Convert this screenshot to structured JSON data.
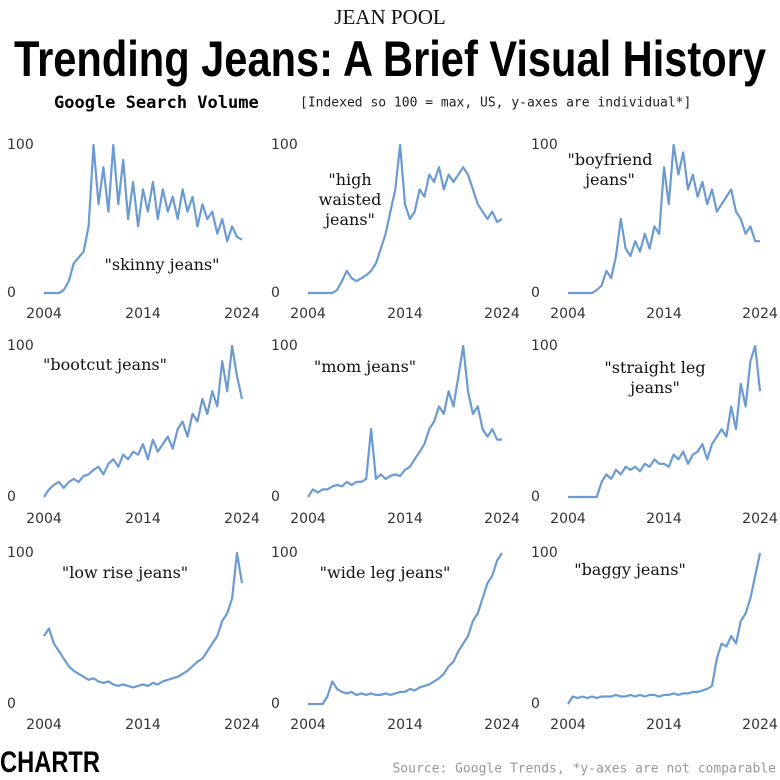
{
  "kicker": "JEAN POOL",
  "title": "Trending Jeans: A Brief Visual History",
  "subtitle_bold": "Google Search Volume",
  "subtitle": "[Indexed so 100 = max, US, y-axes are individual*]",
  "source": "Source: Google Trends, *y-axes are not comparable",
  "logo": "CHARTR",
  "chart_data": [
    {
      "type": "line",
      "title": "\"skinny jeans\"",
      "color": "#6b9bd2",
      "x": [
        2004,
        2004.5,
        2005,
        2005.5,
        2006,
        2006.5,
        2007,
        2007.5,
        2008,
        2008.5,
        2009,
        2009.5,
        2010,
        2010.5,
        2011,
        2011.5,
        2012,
        2012.5,
        2013,
        2013.5,
        2014,
        2014.5,
        2015,
        2015.5,
        2016,
        2016.5,
        2017,
        2017.5,
        2018,
        2018.5,
        2019,
        2019.5,
        2020,
        2020.5,
        2021,
        2021.5,
        2022,
        2022.5,
        2023,
        2023.5,
        2024
      ],
      "values": [
        0,
        0,
        0,
        0,
        2,
        8,
        20,
        24,
        28,
        45,
        100,
        60,
        85,
        55,
        100,
        60,
        90,
        50,
        75,
        45,
        70,
        55,
        75,
        50,
        70,
        55,
        65,
        50,
        70,
        55,
        65,
        45,
        60,
        50,
        55,
        40,
        50,
        35,
        45,
        38,
        36
      ],
      "xlim": [
        2004,
        2024
      ],
      "xticks": [
        2004,
        2014,
        2024
      ],
      "ylim": [
        0,
        100
      ],
      "yticks": [
        0,
        100
      ]
    },
    {
      "type": "line",
      "title": "\"high\nwaisted\njeans\"",
      "color": "#6b9bd2",
      "x": [
        2004,
        2004.5,
        2005,
        2005.5,
        2006,
        2006.5,
        2007,
        2007.5,
        2008,
        2008.5,
        2009,
        2009.5,
        2010,
        2010.5,
        2011,
        2011.5,
        2012,
        2012.5,
        2013,
        2013.5,
        2014,
        2014.5,
        2015,
        2015.5,
        2016,
        2016.5,
        2017,
        2017.5,
        2018,
        2018.5,
        2019,
        2019.5,
        2020,
        2020.5,
        2021,
        2021.5,
        2022,
        2022.5,
        2023,
        2023.5,
        2024
      ],
      "values": [
        0,
        0,
        0,
        0,
        0,
        0,
        2,
        8,
        15,
        10,
        8,
        10,
        12,
        15,
        20,
        30,
        40,
        55,
        70,
        100,
        60,
        50,
        55,
        70,
        65,
        80,
        75,
        85,
        70,
        80,
        75,
        80,
        85,
        80,
        70,
        60,
        55,
        50,
        55,
        48,
        50
      ],
      "xlim": [
        2004,
        2024
      ],
      "xticks": [
        2004,
        2014,
        2024
      ],
      "ylim": [
        0,
        100
      ],
      "yticks": [
        0,
        100
      ]
    },
    {
      "type": "line",
      "title": "\"boyfriend\njeans\"",
      "color": "#6b9bd2",
      "x": [
        2004,
        2004.5,
        2005,
        2005.5,
        2006,
        2006.5,
        2007,
        2007.5,
        2008,
        2008.5,
        2009,
        2009.5,
        2010,
        2010.5,
        2011,
        2011.5,
        2012,
        2012.5,
        2013,
        2013.5,
        2014,
        2014.5,
        2015,
        2015.5,
        2016,
        2016.5,
        2017,
        2017.5,
        2018,
        2018.5,
        2019,
        2019.5,
        2020,
        2020.5,
        2021,
        2021.5,
        2022,
        2022.5,
        2023,
        2023.5,
        2024
      ],
      "values": [
        0,
        0,
        0,
        0,
        0,
        0,
        2,
        5,
        15,
        10,
        25,
        50,
        30,
        25,
        35,
        28,
        40,
        30,
        45,
        40,
        85,
        60,
        100,
        80,
        95,
        70,
        80,
        65,
        75,
        60,
        70,
        55,
        60,
        65,
        70,
        55,
        50,
        40,
        45,
        35,
        35
      ],
      "xlim": [
        2004,
        2024
      ],
      "xticks": [
        2004,
        2014,
        2024
      ],
      "ylim": [
        0,
        100
      ],
      "yticks": [
        0,
        100
      ]
    },
    {
      "type": "line",
      "title": "\"bootcut jeans\"",
      "color": "#6b9bd2",
      "x": [
        2004,
        2004.5,
        2005,
        2005.5,
        2006,
        2006.5,
        2007,
        2007.5,
        2008,
        2008.5,
        2009,
        2009.5,
        2010,
        2010.5,
        2011,
        2011.5,
        2012,
        2012.5,
        2013,
        2013.5,
        2014,
        2014.5,
        2015,
        2015.5,
        2016,
        2016.5,
        2017,
        2017.5,
        2018,
        2018.5,
        2019,
        2019.5,
        2020,
        2020.5,
        2021,
        2021.5,
        2022,
        2022.5,
        2023,
        2023.5,
        2024
      ],
      "values": [
        0,
        5,
        8,
        10,
        6,
        10,
        12,
        10,
        14,
        15,
        18,
        20,
        15,
        22,
        25,
        20,
        28,
        25,
        30,
        28,
        35,
        25,
        38,
        30,
        35,
        40,
        32,
        45,
        50,
        40,
        55,
        50,
        65,
        55,
        70,
        60,
        90,
        70,
        100,
        80,
        65
      ],
      "xlim": [
        2004,
        2024
      ],
      "xticks": [
        2004,
        2014,
        2024
      ],
      "ylim": [
        0,
        100
      ],
      "yticks": [
        0,
        100
      ]
    },
    {
      "type": "line",
      "title": "\"mom jeans\"",
      "color": "#6b9bd2",
      "x": [
        2004,
        2004.5,
        2005,
        2005.5,
        2006,
        2006.5,
        2007,
        2007.5,
        2008,
        2008.5,
        2009,
        2009.5,
        2010,
        2010.5,
        2011,
        2011.5,
        2012,
        2012.5,
        2013,
        2013.5,
        2014,
        2014.5,
        2015,
        2015.5,
        2016,
        2016.5,
        2017,
        2017.5,
        2018,
        2018.5,
        2019,
        2019.5,
        2020,
        2020.5,
        2021,
        2021.5,
        2022,
        2022.5,
        2023,
        2023.5,
        2024
      ],
      "values": [
        0,
        5,
        3,
        5,
        5,
        7,
        8,
        7,
        10,
        8,
        10,
        10,
        12,
        45,
        12,
        15,
        12,
        14,
        15,
        14,
        18,
        20,
        25,
        30,
        35,
        45,
        50,
        60,
        55,
        70,
        60,
        80,
        100,
        70,
        55,
        60,
        45,
        40,
        45,
        38,
        38
      ],
      "xlim": [
        2004,
        2024
      ],
      "xticks": [
        2004,
        2014,
        2024
      ],
      "ylim": [
        0,
        100
      ],
      "yticks": [
        0,
        100
      ]
    },
    {
      "type": "line",
      "title": "\"straight leg\njeans\"",
      "color": "#6b9bd2",
      "x": [
        2004,
        2004.5,
        2005,
        2005.5,
        2006,
        2006.5,
        2007,
        2007.5,
        2008,
        2008.5,
        2009,
        2009.5,
        2010,
        2010.5,
        2011,
        2011.5,
        2012,
        2012.5,
        2013,
        2013.5,
        2014,
        2014.5,
        2015,
        2015.5,
        2016,
        2016.5,
        2017,
        2017.5,
        2018,
        2018.5,
        2019,
        2019.5,
        2020,
        2020.5,
        2021,
        2021.5,
        2022,
        2022.5,
        2023,
        2023.5,
        2024
      ],
      "values": [
        0,
        0,
        0,
        0,
        0,
        0,
        0,
        10,
        15,
        12,
        18,
        15,
        20,
        18,
        20,
        17,
        22,
        20,
        25,
        22,
        22,
        20,
        28,
        25,
        30,
        22,
        28,
        30,
        35,
        25,
        35,
        40,
        45,
        40,
        60,
        45,
        75,
        60,
        90,
        100,
        70
      ],
      "xlim": [
        2004,
        2024
      ],
      "xticks": [
        2004,
        2014,
        2024
      ],
      "ylim": [
        0,
        100
      ],
      "yticks": [
        0,
        100
      ]
    },
    {
      "type": "line",
      "title": "\"low rise jeans\"",
      "color": "#6b9bd2",
      "x": [
        2004,
        2004.5,
        2005,
        2005.5,
        2006,
        2006.5,
        2007,
        2007.5,
        2008,
        2008.5,
        2009,
        2009.5,
        2010,
        2010.5,
        2011,
        2011.5,
        2012,
        2012.5,
        2013,
        2013.5,
        2014,
        2014.5,
        2015,
        2015.5,
        2016,
        2016.5,
        2017,
        2017.5,
        2018,
        2018.5,
        2019,
        2019.5,
        2020,
        2020.5,
        2021,
        2021.5,
        2022,
        2022.5,
        2023,
        2023.5,
        2024
      ],
      "values": [
        45,
        50,
        40,
        35,
        30,
        25,
        22,
        20,
        18,
        16,
        17,
        15,
        14,
        15,
        13,
        12,
        13,
        12,
        11,
        12,
        13,
        12,
        14,
        13,
        15,
        16,
        17,
        18,
        20,
        22,
        25,
        28,
        30,
        35,
        40,
        45,
        55,
        60,
        70,
        100,
        80
      ],
      "xlim": [
        2004,
        2024
      ],
      "xticks": [
        2004,
        2014,
        2024
      ],
      "ylim": [
        0,
        100
      ],
      "yticks": [
        0,
        100
      ]
    },
    {
      "type": "line",
      "title": "\"wide leg jeans\"",
      "color": "#6b9bd2",
      "x": [
        2004,
        2004.5,
        2005,
        2005.5,
        2006,
        2006.5,
        2007,
        2007.5,
        2008,
        2008.5,
        2009,
        2009.5,
        2010,
        2010.5,
        2011,
        2011.5,
        2012,
        2012.5,
        2013,
        2013.5,
        2014,
        2014.5,
        2015,
        2015.5,
        2016,
        2016.5,
        2017,
        2017.5,
        2018,
        2018.5,
        2019,
        2019.5,
        2020,
        2020.5,
        2021,
        2021.5,
        2022,
        2022.5,
        2023,
        2023.5,
        2024
      ],
      "values": [
        0,
        0,
        0,
        0,
        5,
        15,
        10,
        8,
        7,
        8,
        6,
        7,
        6,
        7,
        6,
        6,
        7,
        6,
        7,
        8,
        8,
        10,
        9,
        11,
        12,
        13,
        15,
        17,
        20,
        25,
        28,
        35,
        40,
        45,
        55,
        60,
        70,
        80,
        85,
        95,
        100
      ],
      "xlim": [
        2004,
        2024
      ],
      "xticks": [
        2004,
        2014,
        2024
      ],
      "ylim": [
        0,
        100
      ],
      "yticks": [
        0,
        100
      ]
    },
    {
      "type": "line",
      "title": "\"baggy jeans\"",
      "color": "#6b9bd2",
      "x": [
        2004,
        2004.5,
        2005,
        2005.5,
        2006,
        2006.5,
        2007,
        2007.5,
        2008,
        2008.5,
        2009,
        2009.5,
        2010,
        2010.5,
        2011,
        2011.5,
        2012,
        2012.5,
        2013,
        2013.5,
        2014,
        2014.5,
        2015,
        2015.5,
        2016,
        2016.5,
        2017,
        2017.5,
        2018,
        2018.5,
        2019,
        2019.5,
        2020,
        2020.5,
        2021,
        2021.5,
        2022,
        2022.5,
        2023,
        2023.5,
        2024
      ],
      "values": [
        0,
        5,
        4,
        5,
        4,
        5,
        4,
        5,
        5,
        5,
        6,
        5,
        5,
        6,
        5,
        6,
        5,
        6,
        6,
        5,
        6,
        6,
        7,
        6,
        7,
        7,
        8,
        8,
        9,
        10,
        12,
        30,
        40,
        38,
        45,
        40,
        55,
        60,
        70,
        85,
        100
      ],
      "xlim": [
        2004,
        2024
      ],
      "xticks": [
        2004,
        2014,
        2024
      ],
      "ylim": [
        0,
        100
      ],
      "yticks": [
        0,
        100
      ]
    }
  ]
}
